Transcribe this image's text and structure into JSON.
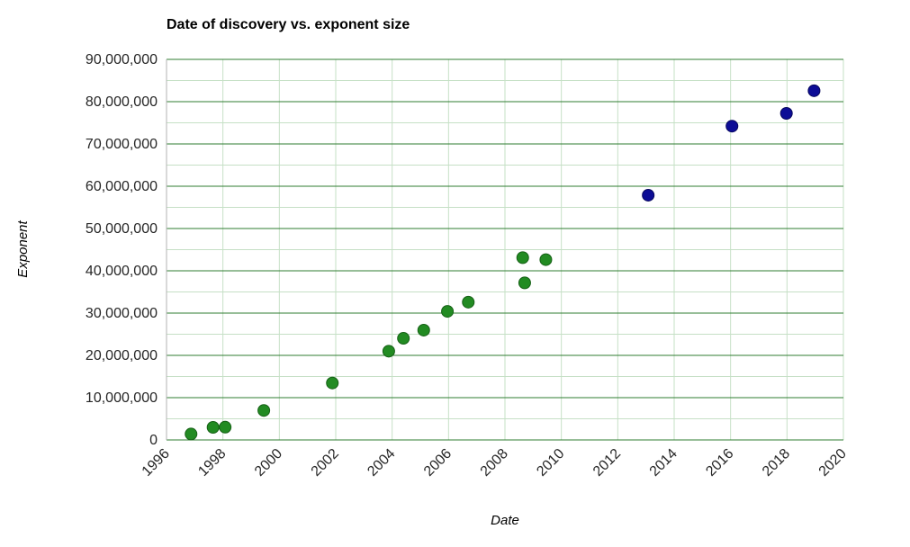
{
  "chart_data": {
    "type": "scatter",
    "title": "Date of discovery vs. exponent size",
    "xlabel": "Date",
    "ylabel": "Exponent",
    "xlim": [
      1996,
      2020
    ],
    "ylim": [
      0,
      90000000
    ],
    "grid": true,
    "legend": "none",
    "x_ticks": [
      1996,
      1998,
      2000,
      2002,
      2004,
      2006,
      2008,
      2010,
      2012,
      2014,
      2016,
      2018,
      2020
    ],
    "x_tick_labels": [
      "1996",
      "1998",
      "2000",
      "2002",
      "2004",
      "2006",
      "2008",
      "2010",
      "2012",
      "2014",
      "2016",
      "2018",
      "2020"
    ],
    "y_ticks": [
      0,
      10000000,
      20000000,
      30000000,
      40000000,
      50000000,
      60000000,
      70000000,
      80000000,
      90000000
    ],
    "y_tick_labels": [
      "0",
      "10,000,000",
      "20,000,000",
      "30,000,000",
      "40,000,000",
      "50,000,000",
      "60,000,000",
      "70,000,000",
      "80,000,000",
      "90,000,000"
    ],
    "colors": {
      "green_series": "#228b22",
      "navy_series": "#0d0d96",
      "major_gridline": "#2f7d31",
      "minor_gridline": "#c6e0c6",
      "axis_line": "#b3b3b3",
      "tick_label": "#262626"
    },
    "series": [
      {
        "name": "green-points",
        "color": "#228b22",
        "stroke": "#166016",
        "points": [
          {
            "x": 1996.87,
            "y": 1398269
          },
          {
            "x": 1997.65,
            "y": 2976221
          },
          {
            "x": 1998.08,
            "y": 3021377
          },
          {
            "x": 1999.45,
            "y": 6972593
          },
          {
            "x": 2001.88,
            "y": 13466917
          },
          {
            "x": 2003.88,
            "y": 20996011
          },
          {
            "x": 2004.4,
            "y": 24036583
          },
          {
            "x": 2005.12,
            "y": 25964951
          },
          {
            "x": 2005.96,
            "y": 30402457
          },
          {
            "x": 2006.7,
            "y": 32582657
          },
          {
            "x": 2008.7,
            "y": 37156667
          },
          {
            "x": 2008.63,
            "y": 43112609
          },
          {
            "x": 2009.45,
            "y": 42643801
          }
        ]
      },
      {
        "name": "navy-points",
        "color": "#0d0d96",
        "stroke": "#08085e",
        "points": [
          {
            "x": 2013.08,
            "y": 57885161
          },
          {
            "x": 2016.05,
            "y": 74207281
          },
          {
            "x": 2017.98,
            "y": 77232917
          },
          {
            "x": 2018.96,
            "y": 82589933
          }
        ]
      }
    ]
  }
}
